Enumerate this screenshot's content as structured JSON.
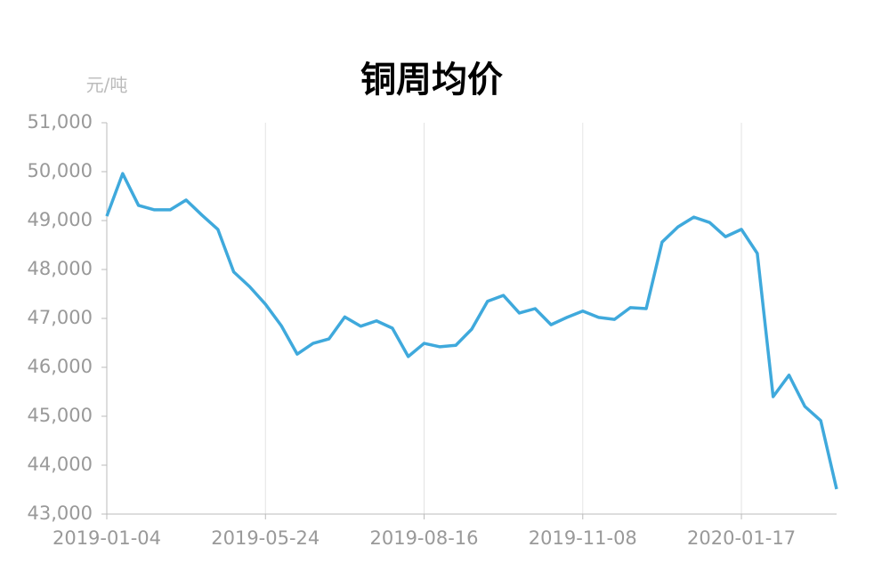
{
  "chart_data": {
    "type": "line",
    "title": "铜周均价",
    "y_axis_label": "元/吨",
    "categories": [
      "2019-01-04",
      null,
      null,
      null,
      null,
      null,
      null,
      null,
      null,
      null,
      "2019-05-24",
      null,
      null,
      null,
      null,
      null,
      null,
      null,
      null,
      null,
      "2019-08-16",
      null,
      null,
      null,
      null,
      null,
      null,
      null,
      null,
      null,
      "2019-11-08",
      null,
      null,
      null,
      null,
      null,
      null,
      null,
      null,
      null,
      "2020-01-17",
      null,
      null,
      null,
      null,
      null,
      null
    ],
    "series": [
      {
        "color": "#3fa9dc",
        "values": [
          49090,
          49960,
          49310,
          49220,
          49220,
          49420,
          49110,
          48820,
          47950,
          47650,
          47290,
          46850,
          46270,
          46490,
          46580,
          47030,
          46840,
          46950,
          46800,
          46220,
          46490,
          46420,
          46450,
          46780,
          47350,
          47470,
          47110,
          47200,
          46870,
          47020,
          47150,
          47020,
          46980,
          47220,
          47200,
          48560,
          48870,
          49070,
          48960,
          48670,
          48820,
          48330,
          45400,
          45840,
          45200,
          44910,
          43510
        ]
      }
    ],
    "ylim": [
      43000,
      51000
    ],
    "yticks": [
      {
        "value": 43000,
        "label": "43,000"
      },
      {
        "value": 44000,
        "label": "44,000"
      },
      {
        "value": 45000,
        "label": "45,000"
      },
      {
        "value": 46000,
        "label": "46,000"
      },
      {
        "value": 47000,
        "label": "47,000"
      },
      {
        "value": 48000,
        "label": "48,000"
      },
      {
        "value": 49000,
        "label": "49,000"
      },
      {
        "value": 50000,
        "label": "50,000"
      },
      {
        "value": 51000,
        "label": "51,000"
      }
    ],
    "grid": true
  }
}
